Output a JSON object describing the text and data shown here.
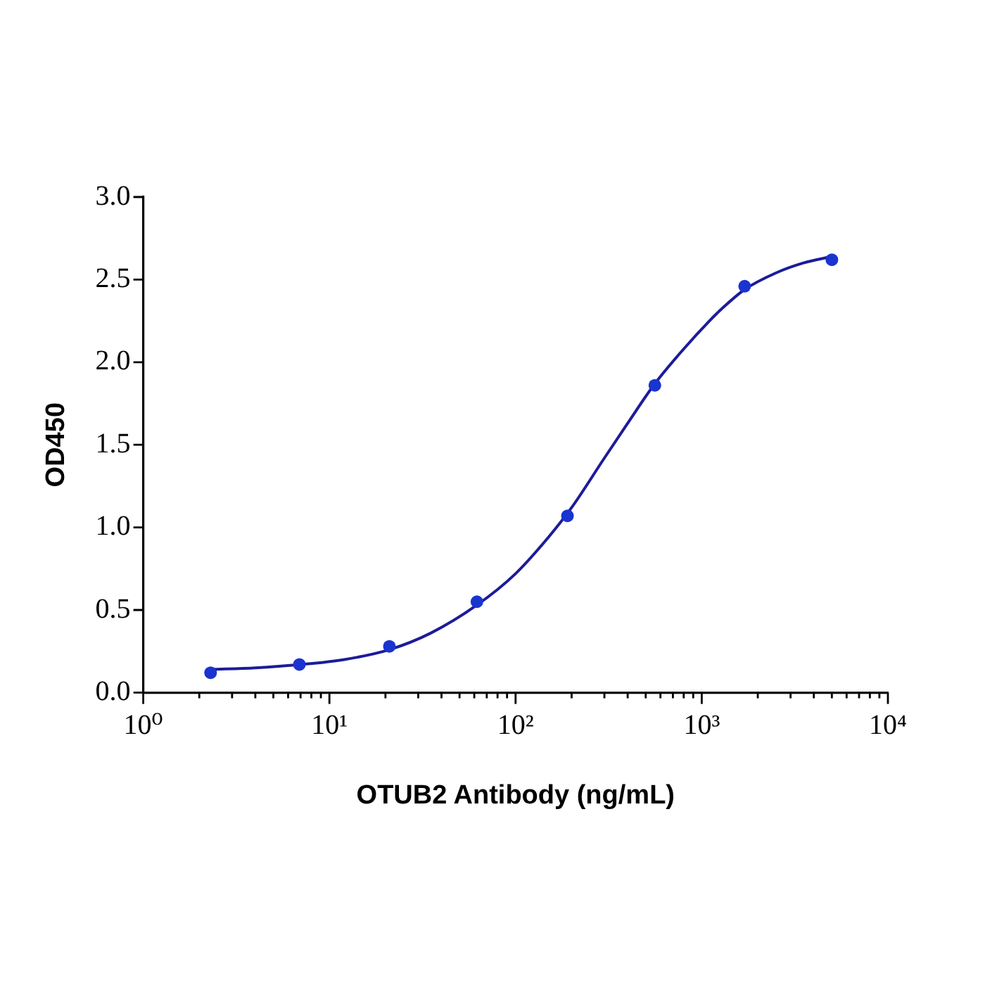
{
  "chart_data": {
    "type": "scatter",
    "xlabel": "OTUB2 Antibody (ng/mL)",
    "ylabel": "OD450",
    "log": "x",
    "grid": false,
    "legend": false,
    "xlim": [
      1,
      10000
    ],
    "xticks": [
      {
        "value": 1,
        "label": "10⁰"
      },
      {
        "value": 2,
        "label": null
      },
      {
        "value": 3,
        "label": null
      },
      {
        "value": 4,
        "label": null
      },
      {
        "value": 5,
        "label": null
      },
      {
        "value": 6,
        "label": null
      },
      {
        "value": 7,
        "label": null
      },
      {
        "value": 8,
        "label": null
      },
      {
        "value": 9,
        "label": null
      },
      {
        "value": 10,
        "label": "10¹"
      },
      {
        "value": 20,
        "label": null
      },
      {
        "value": 30,
        "label": null
      },
      {
        "value": 40,
        "label": null
      },
      {
        "value": 50,
        "label": null
      },
      {
        "value": 60,
        "label": null
      },
      {
        "value": 70,
        "label": null
      },
      {
        "value": 80,
        "label": null
      },
      {
        "value": 90,
        "label": null
      },
      {
        "value": 100,
        "label": "10²"
      },
      {
        "value": 200,
        "label": null
      },
      {
        "value": 300,
        "label": null
      },
      {
        "value": 400,
        "label": null
      },
      {
        "value": 500,
        "label": null
      },
      {
        "value": 600,
        "label": null
      },
      {
        "value": 700,
        "label": null
      },
      {
        "value": 800,
        "label": null
      },
      {
        "value": 900,
        "label": null
      },
      {
        "value": 1000,
        "label": "10³"
      },
      {
        "value": 2000,
        "label": null
      },
      {
        "value": 3000,
        "label": null
      },
      {
        "value": 4000,
        "label": null
      },
      {
        "value": 5000,
        "label": null
      },
      {
        "value": 6000,
        "label": null
      },
      {
        "value": 7000,
        "label": null
      },
      {
        "value": 8000,
        "label": null
      },
      {
        "value": 9000,
        "label": null
      },
      {
        "value": 10000,
        "label": "10⁴"
      }
    ],
    "ylim": [
      0,
      3
    ],
    "yticks": [
      {
        "value": 0,
        "label": "0.0"
      },
      0.5,
      {
        "value": 1,
        "label": "1.0"
      },
      1.5,
      {
        "value": 2,
        "label": "2.0"
      },
      2.5,
      {
        "value": 3,
        "label": "3.0"
      }
    ],
    "series": [
      {
        "marker": "circle",
        "color": "#1a34d0",
        "x": [
          2.3,
          6.9,
          21,
          62,
          190,
          560,
          1700,
          5000
        ],
        "values": [
          0.12,
          0.17,
          0.28,
          0.55,
          1.07,
          1.86,
          2.46,
          2.62
        ]
      },
      {
        "type": "line",
        "marker": "none",
        "line_style": "solid",
        "color": "#1c1c99",
        "x": [
          2.3,
          4,
          7,
          12,
          21,
          35,
          62,
          100,
          150,
          200,
          300,
          400,
          560,
          800,
          1100,
          1300,
          1700,
          2500,
          3500,
          5000
        ],
        "values": [
          0.14,
          0.15,
          0.17,
          0.2,
          0.26,
          0.36,
          0.53,
          0.72,
          0.94,
          1.12,
          1.42,
          1.63,
          1.87,
          2.08,
          2.25,
          2.33,
          2.44,
          2.54,
          2.6,
          2.64
        ]
      }
    ]
  }
}
